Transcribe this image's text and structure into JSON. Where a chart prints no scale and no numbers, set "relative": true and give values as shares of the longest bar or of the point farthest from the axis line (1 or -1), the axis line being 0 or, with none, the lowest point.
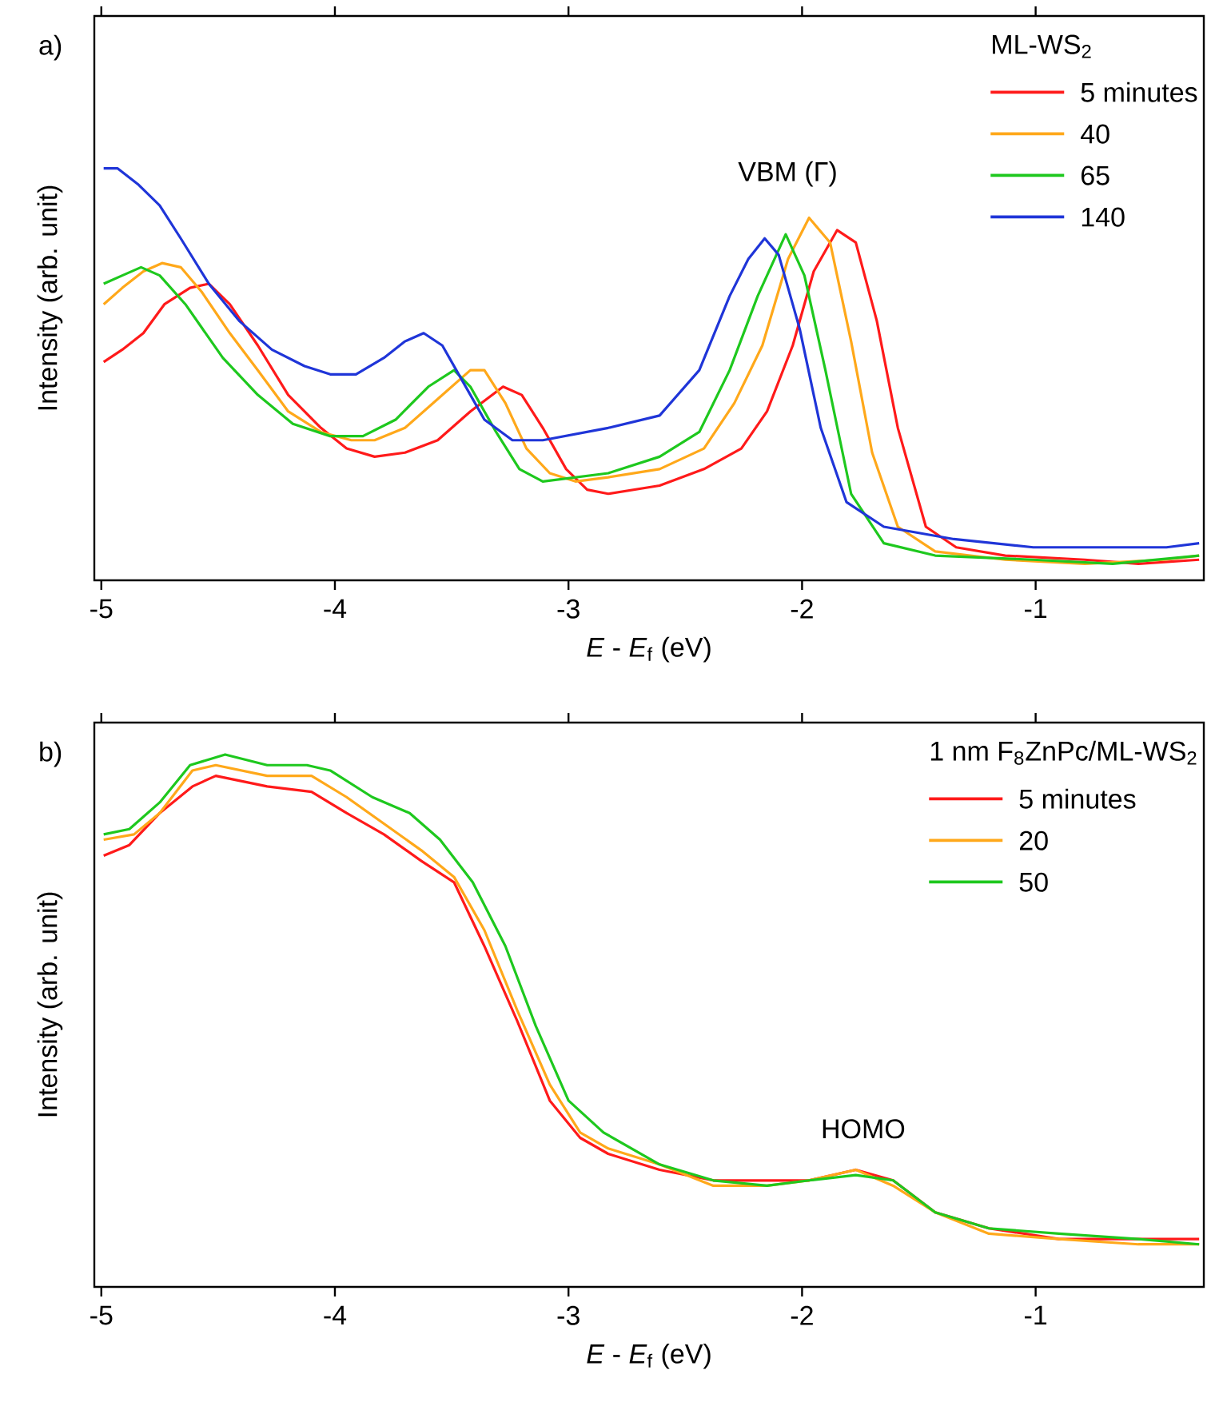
{
  "chart_data": [
    {
      "type": "line",
      "title": "a)",
      "xlabel": "*E* - *E*$_{f}$ (eV)",
      "ylabel": "Intensity (arb. unit)",
      "relative": true,
      "xlim": [
        -5.03,
        -0.28
      ],
      "xticks": [
        -5,
        -4,
        -3,
        -2,
        -1
      ],
      "legend": "top right",
      "legend_title": "ML-WS$_{2}$",
      "annotations": [
        "VBM (Γ)"
      ],
      "series": [
        {
          "name": "5 minutes",
          "color": "#ff1a1a",
          "x": [
            -4.99,
            -4.91,
            -4.82,
            -4.73,
            -4.62,
            -4.54,
            -4.45,
            -4.33,
            -4.2,
            -4.06,
            -3.95,
            -3.83,
            -3.7,
            -3.56,
            -3.42,
            -3.28,
            -3.2,
            -3.11,
            -3.01,
            -2.92,
            -2.83,
            -2.61,
            -2.42,
            -2.26,
            -2.15,
            -2.04,
            -1.95,
            -1.85,
            -1.77,
            -1.68,
            -1.59,
            -1.47,
            -1.34,
            -1.13,
            -0.79,
            -0.56,
            -0.3
          ],
          "values": [
            0.53,
            0.56,
            0.6,
            0.67,
            0.71,
            0.72,
            0.67,
            0.57,
            0.45,
            0.37,
            0.32,
            0.3,
            0.31,
            0.34,
            0.41,
            0.47,
            0.45,
            0.37,
            0.27,
            0.22,
            0.21,
            0.23,
            0.27,
            0.32,
            0.41,
            0.57,
            0.75,
            0.85,
            0.82,
            0.63,
            0.37,
            0.13,
            0.08,
            0.06,
            0.05,
            0.04,
            0.05
          ]
        },
        {
          "name": "40",
          "color": "#ffa81a",
          "x": [
            -4.99,
            -4.91,
            -4.82,
            -4.74,
            -4.66,
            -4.57,
            -4.45,
            -4.33,
            -4.2,
            -4.06,
            -3.93,
            -3.83,
            -3.7,
            -3.56,
            -3.42,
            -3.36,
            -3.27,
            -3.18,
            -3.08,
            -2.97,
            -2.83,
            -2.61,
            -2.42,
            -2.29,
            -2.17,
            -2.06,
            -1.97,
            -1.88,
            -1.79,
            -1.7,
            -1.59,
            -1.43,
            -1.13,
            -0.79,
            -0.45,
            -0.3
          ],
          "values": [
            0.67,
            0.71,
            0.75,
            0.77,
            0.76,
            0.7,
            0.6,
            0.51,
            0.41,
            0.36,
            0.34,
            0.34,
            0.37,
            0.44,
            0.51,
            0.51,
            0.43,
            0.32,
            0.26,
            0.24,
            0.25,
            0.27,
            0.32,
            0.43,
            0.57,
            0.78,
            0.88,
            0.82,
            0.58,
            0.31,
            0.13,
            0.07,
            0.05,
            0.04,
            0.05,
            0.06
          ]
        },
        {
          "name": "65",
          "color": "#1ec81e",
          "x": [
            -4.99,
            -4.91,
            -4.83,
            -4.75,
            -4.64,
            -4.48,
            -4.33,
            -4.18,
            -4.02,
            -3.88,
            -3.74,
            -3.6,
            -3.49,
            -3.42,
            -3.31,
            -3.21,
            -3.11,
            -2.83,
            -2.61,
            -2.44,
            -2.31,
            -2.19,
            -2.07,
            -1.99,
            -1.9,
            -1.79,
            -1.65,
            -1.43,
            -1.01,
            -0.67,
            -0.3
          ],
          "values": [
            0.72,
            0.74,
            0.76,
            0.74,
            0.67,
            0.54,
            0.45,
            0.38,
            0.35,
            0.35,
            0.39,
            0.47,
            0.51,
            0.47,
            0.36,
            0.27,
            0.24,
            0.26,
            0.3,
            0.36,
            0.51,
            0.69,
            0.84,
            0.74,
            0.51,
            0.21,
            0.09,
            0.06,
            0.05,
            0.04,
            0.06
          ]
        },
        {
          "name": "140",
          "color": "#1f35d8",
          "x": [
            -4.99,
            -4.93,
            -4.84,
            -4.75,
            -4.66,
            -4.54,
            -4.41,
            -4.27,
            -4.13,
            -4.02,
            -3.91,
            -3.79,
            -3.7,
            -3.62,
            -3.54,
            -3.45,
            -3.36,
            -3.24,
            -3.11,
            -2.83,
            -2.61,
            -2.44,
            -2.31,
            -2.23,
            -2.16,
            -2.1,
            -2.01,
            -1.92,
            -1.81,
            -1.65,
            -1.35,
            -1.01,
            -0.67,
            -0.44,
            -0.3
          ],
          "values": [
            1.0,
            1.0,
            0.96,
            0.91,
            0.83,
            0.72,
            0.63,
            0.56,
            0.52,
            0.5,
            0.5,
            0.54,
            0.58,
            0.6,
            0.57,
            0.48,
            0.39,
            0.34,
            0.34,
            0.37,
            0.4,
            0.51,
            0.69,
            0.78,
            0.83,
            0.79,
            0.61,
            0.37,
            0.19,
            0.13,
            0.1,
            0.08,
            0.08,
            0.08,
            0.09
          ]
        }
      ]
    },
    {
      "type": "line",
      "title": "b)",
      "xlabel": "*E* - *E*$_{f}$ (eV)",
      "ylabel": "Intensity (arb. unit)",
      "relative": true,
      "xlim": [
        -5.03,
        -0.28
      ],
      "xticks": [
        -5,
        -4,
        -3,
        -2,
        -1
      ],
      "legend": "top right",
      "legend_title": "1 nm F$_{8}$ZnPc/ML-WS$_{2}$",
      "annotations": [
        "HOMO"
      ],
      "series": [
        {
          "name": "5 minutes",
          "color": "#ff1a1a",
          "x": [
            -4.99,
            -4.88,
            -4.75,
            -4.61,
            -4.51,
            -4.29,
            -4.1,
            -3.95,
            -3.79,
            -3.63,
            -3.49,
            -3.36,
            -3.22,
            -3.08,
            -2.95,
            -2.83,
            -2.61,
            -2.38,
            -2.15,
            -1.97,
            -1.77,
            -1.61,
            -1.43,
            -1.2,
            -0.9,
            -0.56,
            -0.3
          ],
          "values": [
            0.81,
            0.83,
            0.89,
            0.94,
            0.96,
            0.94,
            0.93,
            0.89,
            0.85,
            0.8,
            0.76,
            0.64,
            0.5,
            0.35,
            0.28,
            0.25,
            0.22,
            0.2,
            0.2,
            0.2,
            0.22,
            0.2,
            0.14,
            0.11,
            0.09,
            0.09,
            0.09
          ]
        },
        {
          "name": "20",
          "color": "#ffa81a",
          "x": [
            -4.99,
            -4.86,
            -4.75,
            -4.61,
            -4.51,
            -4.29,
            -4.1,
            -3.95,
            -3.79,
            -3.63,
            -3.49,
            -3.36,
            -3.22,
            -3.08,
            -2.95,
            -2.83,
            -2.61,
            -2.38,
            -2.15,
            -1.97,
            -1.77,
            -1.61,
            -1.43,
            -1.2,
            -0.9,
            -0.56,
            -0.3
          ],
          "values": [
            0.84,
            0.85,
            0.89,
            0.97,
            0.98,
            0.96,
            0.96,
            0.92,
            0.87,
            0.82,
            0.77,
            0.67,
            0.52,
            0.38,
            0.29,
            0.26,
            0.23,
            0.19,
            0.19,
            0.2,
            0.22,
            0.19,
            0.14,
            0.1,
            0.09,
            0.08,
            0.08
          ]
        },
        {
          "name": "50",
          "color": "#1ec81e",
          "x": [
            -4.99,
            -4.88,
            -4.75,
            -4.62,
            -4.47,
            -4.29,
            -4.12,
            -4.02,
            -3.84,
            -3.68,
            -3.55,
            -3.41,
            -3.27,
            -3.14,
            -3.0,
            -2.85,
            -2.61,
            -2.38,
            -2.15,
            -1.97,
            -1.77,
            -1.61,
            -1.43,
            -1.2,
            -0.9,
            -0.56,
            -0.3
          ],
          "values": [
            0.85,
            0.86,
            0.91,
            0.98,
            1.0,
            0.98,
            0.98,
            0.97,
            0.92,
            0.89,
            0.84,
            0.76,
            0.64,
            0.49,
            0.35,
            0.29,
            0.23,
            0.2,
            0.19,
            0.2,
            0.21,
            0.2,
            0.14,
            0.11,
            0.1,
            0.09,
            0.08
          ]
        }
      ]
    }
  ]
}
